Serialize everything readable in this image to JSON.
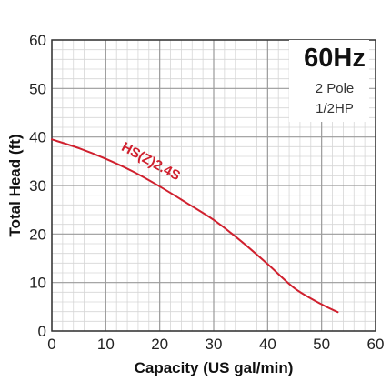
{
  "chart_data": {
    "type": "line",
    "title": "60Hz",
    "subtitle_lines": [
      "2 Pole",
      "1/2HP"
    ],
    "xlabel": "Capacity (US gal/min)",
    "ylabel": "Total Head (ft)",
    "xlim": [
      0,
      60
    ],
    "ylim": [
      0,
      60
    ],
    "x_ticks": [
      0,
      10,
      20,
      30,
      40,
      50,
      60
    ],
    "y_ticks": [
      0,
      10,
      20,
      30,
      40,
      50,
      60
    ],
    "grid": true,
    "minor_grid_step": 2,
    "major_grid_step": 10,
    "series": [
      {
        "name": "HS(Z)2.4S",
        "color": "#d0202e",
        "x": [
          0,
          5,
          10,
          15,
          20,
          25,
          30,
          35,
          40,
          45,
          50,
          53
        ],
        "y": [
          39.5,
          37.7,
          35.5,
          32.9,
          29.8,
          26.4,
          22.9,
          18.6,
          13.8,
          8.8,
          5.5,
          3.9
        ]
      }
    ]
  }
}
